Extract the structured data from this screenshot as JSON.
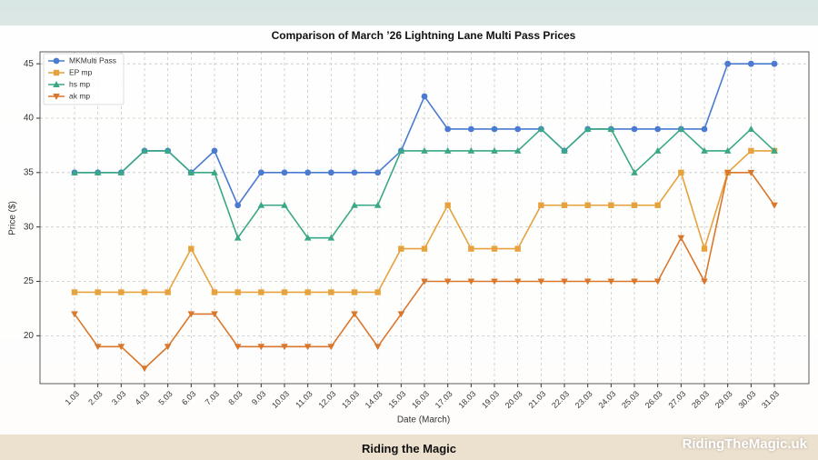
{
  "chart_data": {
    "type": "line",
    "title": "Comparison of March ’26 Lightning Lane Multi Pass Prices",
    "x_label": "Date (March)",
    "y_label": "Price ($)",
    "categories": [
      "1.03",
      "2.03",
      "3.03",
      "4.03",
      "5.03",
      "6.03",
      "7.03",
      "8.03",
      "9.03",
      "10.03",
      "11.03",
      "12.03",
      "13.03",
      "14.03",
      "15.03",
      "16.03",
      "17.03",
      "18.03",
      "19.03",
      "20.03",
      "21.03",
      "22.03",
      "23.03",
      "24.03",
      "25.03",
      "26.03",
      "27.03",
      "28.03",
      "29.03",
      "30.03",
      "31.03"
    ],
    "series": [
      {
        "name": "MKMulti Pass",
        "color": "#4a7bd0",
        "marker": "circle",
        "values": [
          35,
          35,
          35,
          37,
          37,
          35,
          37,
          32,
          35,
          35,
          35,
          35,
          35,
          35,
          37,
          42,
          39,
          39,
          39,
          39,
          39,
          37,
          39,
          39,
          39,
          39,
          39,
          39,
          45,
          45,
          45
        ]
      },
      {
        "name": "EP mp",
        "color": "#e6a23c",
        "marker": "square",
        "values": [
          24,
          24,
          24,
          24,
          24,
          28,
          24,
          24,
          24,
          24,
          24,
          24,
          24,
          24,
          28,
          28,
          32,
          28,
          28,
          28,
          32,
          32,
          32,
          32,
          32,
          32,
          35,
          28,
          35,
          37,
          37
        ]
      },
      {
        "name": "hs mp",
        "color": "#3aa886",
        "marker": "triangle-up",
        "values": [
          35,
          35,
          35,
          37,
          37,
          35,
          35,
          29,
          32,
          32,
          29,
          29,
          32,
          32,
          37,
          37,
          37,
          37,
          37,
          37,
          39,
          37,
          39,
          39,
          35,
          37,
          39,
          37,
          37,
          39,
          37
        ]
      },
      {
        "name": "ak mp",
        "color": "#d9772c",
        "marker": "triangle-down",
        "values": [
          22,
          19,
          19,
          17,
          19,
          22,
          22,
          19,
          19,
          19,
          19,
          19,
          22,
          19,
          22,
          25,
          25,
          25,
          25,
          25,
          25,
          25,
          25,
          25,
          25,
          25,
          29,
          25,
          35,
          35,
          32
        ]
      }
    ],
    "ylim": [
      15.6,
      46.1
    ],
    "yticks": [
      20,
      25,
      30,
      35,
      40,
      45
    ],
    "grid": true,
    "legend": "upper left"
  },
  "branding": {
    "center": "Riding the Magic",
    "right": "RidingTheMagic.uk"
  }
}
